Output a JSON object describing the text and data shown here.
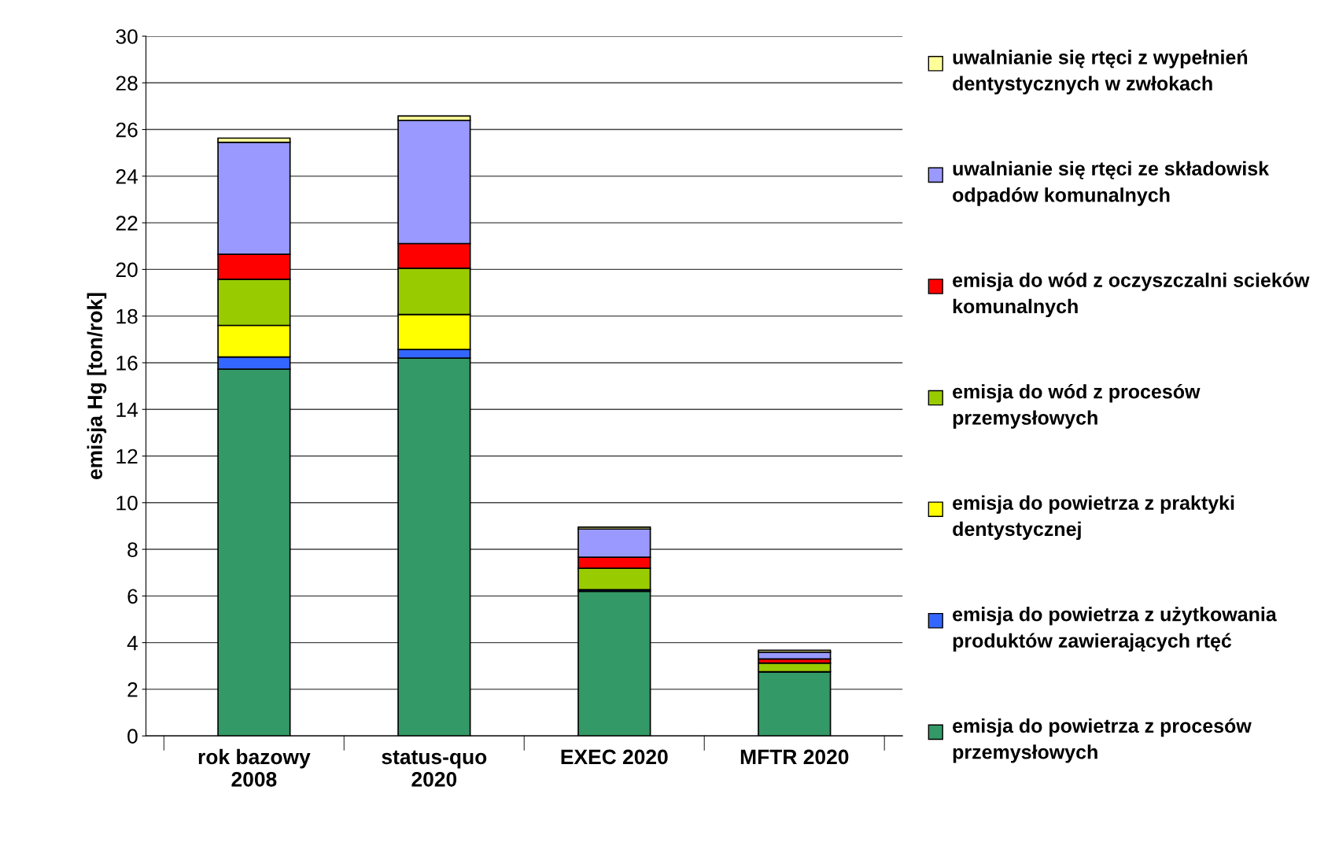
{
  "chart_data": {
    "type": "bar",
    "stacked": true,
    "ylabel": "emisja Hg [ton/rok]",
    "categories": [
      "rok bazowy\n2008",
      "status-quo\n2020",
      "EXEC 2020",
      "MFTR 2020"
    ],
    "ylim": [
      0,
      30
    ],
    "yticks": [
      0,
      2,
      4,
      6,
      8,
      10,
      12,
      14,
      16,
      18,
      20,
      22,
      24,
      26,
      28,
      30
    ],
    "grid": "y",
    "legend": "right",
    "series": [
      {
        "name": "emisja do powietrza z procesów przemysłowych",
        "color": "#339966",
        "values": [
          15.73,
          16.2,
          6.2,
          2.75
        ]
      },
      {
        "name": "emisja do powietrza z użytkowania produktów zawierających rtęć",
        "color": "#3366ff",
        "values": [
          0.52,
          0.37,
          0.07,
          0
        ]
      },
      {
        "name": "emisja do powietrza z praktyki dentystycznej",
        "color": "#ffff00",
        "values": [
          1.35,
          1.5,
          0,
          0
        ]
      },
      {
        "name": "emisja do wód z procesów przemysłowych",
        "color": "#99cc00",
        "values": [
          1.98,
          1.98,
          0.92,
          0.37
        ]
      },
      {
        "name": "emisja do wód z oczyszczalni scieków komunalnych",
        "color": "#ff0000",
        "values": [
          1.07,
          1.06,
          0.47,
          0.18
        ]
      },
      {
        "name": "uwalnianie się rtęci ze składowisk odpadów komunalnych",
        "color": "#9999ff",
        "values": [
          4.8,
          5.28,
          1.21,
          0.29
        ]
      },
      {
        "name": "uwalnianie się rtęci z wypełnień dentystycznych w zwłokach",
        "color": "#ffff99",
        "values": [
          0.18,
          0.19,
          0.08,
          0.08
        ]
      }
    ]
  }
}
